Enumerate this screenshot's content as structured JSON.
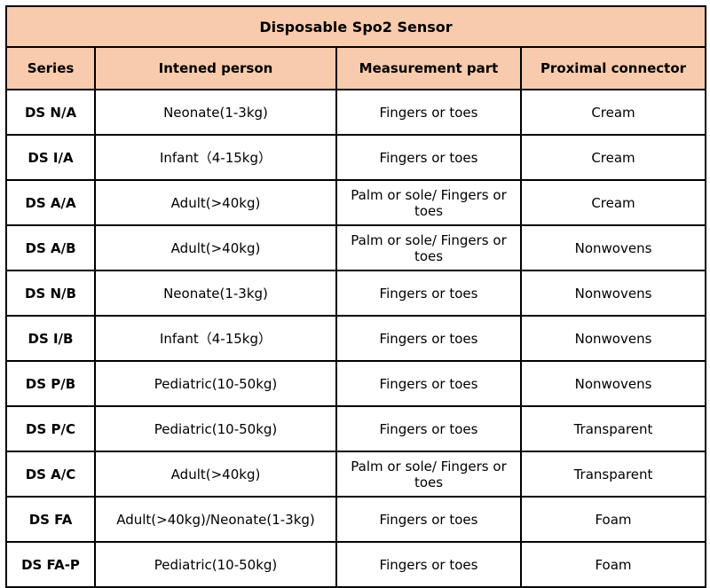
{
  "title": "Disposable Spo2 Sensor",
  "colors": {
    "header_bg": "#f8cbad",
    "border": "#000000"
  },
  "table": {
    "headers": [
      "Series",
      "Intened person",
      "Measurement part",
      "Proximal connector"
    ],
    "rows": [
      [
        "DS N/A",
        "Neonate(1-3kg)",
        "Fingers or toes",
        "Cream"
      ],
      [
        "DS I/A",
        "Infant（4-15kg）",
        "Fingers or toes",
        "Cream"
      ],
      [
        "DS A/A",
        "Adult(>40kg)",
        "Palm or sole/  Fingers or toes",
        "Cream"
      ],
      [
        "DS A/B",
        "Adult(>40kg)",
        "Palm or sole/  Fingers or toes",
        "Nonwovens"
      ],
      [
        "DS N/B",
        "Neonate(1-3kg)",
        "Fingers or toes",
        "Nonwovens"
      ],
      [
        "DS I/B",
        "Infant（4-15kg）",
        "Fingers or toes",
        "Nonwovens"
      ],
      [
        "DS P/B",
        "Pediatric(10-50kg)",
        "Fingers or toes",
        "Nonwovens"
      ],
      [
        "DS P/C",
        "Pediatric(10-50kg)",
        "Fingers or toes",
        "Transparent"
      ],
      [
        "DS A/C",
        "Adult(>40kg)",
        "Palm or sole/  Fingers or toes",
        "Transparent"
      ],
      [
        "DS FA",
        "Adult(>40kg)/Neonate(1-3kg)",
        "Fingers or toes",
        "Foam"
      ],
      [
        "DS FA-P",
        "Pediatric(10-50kg)",
        "Fingers or toes",
        "Foam"
      ]
    ]
  }
}
